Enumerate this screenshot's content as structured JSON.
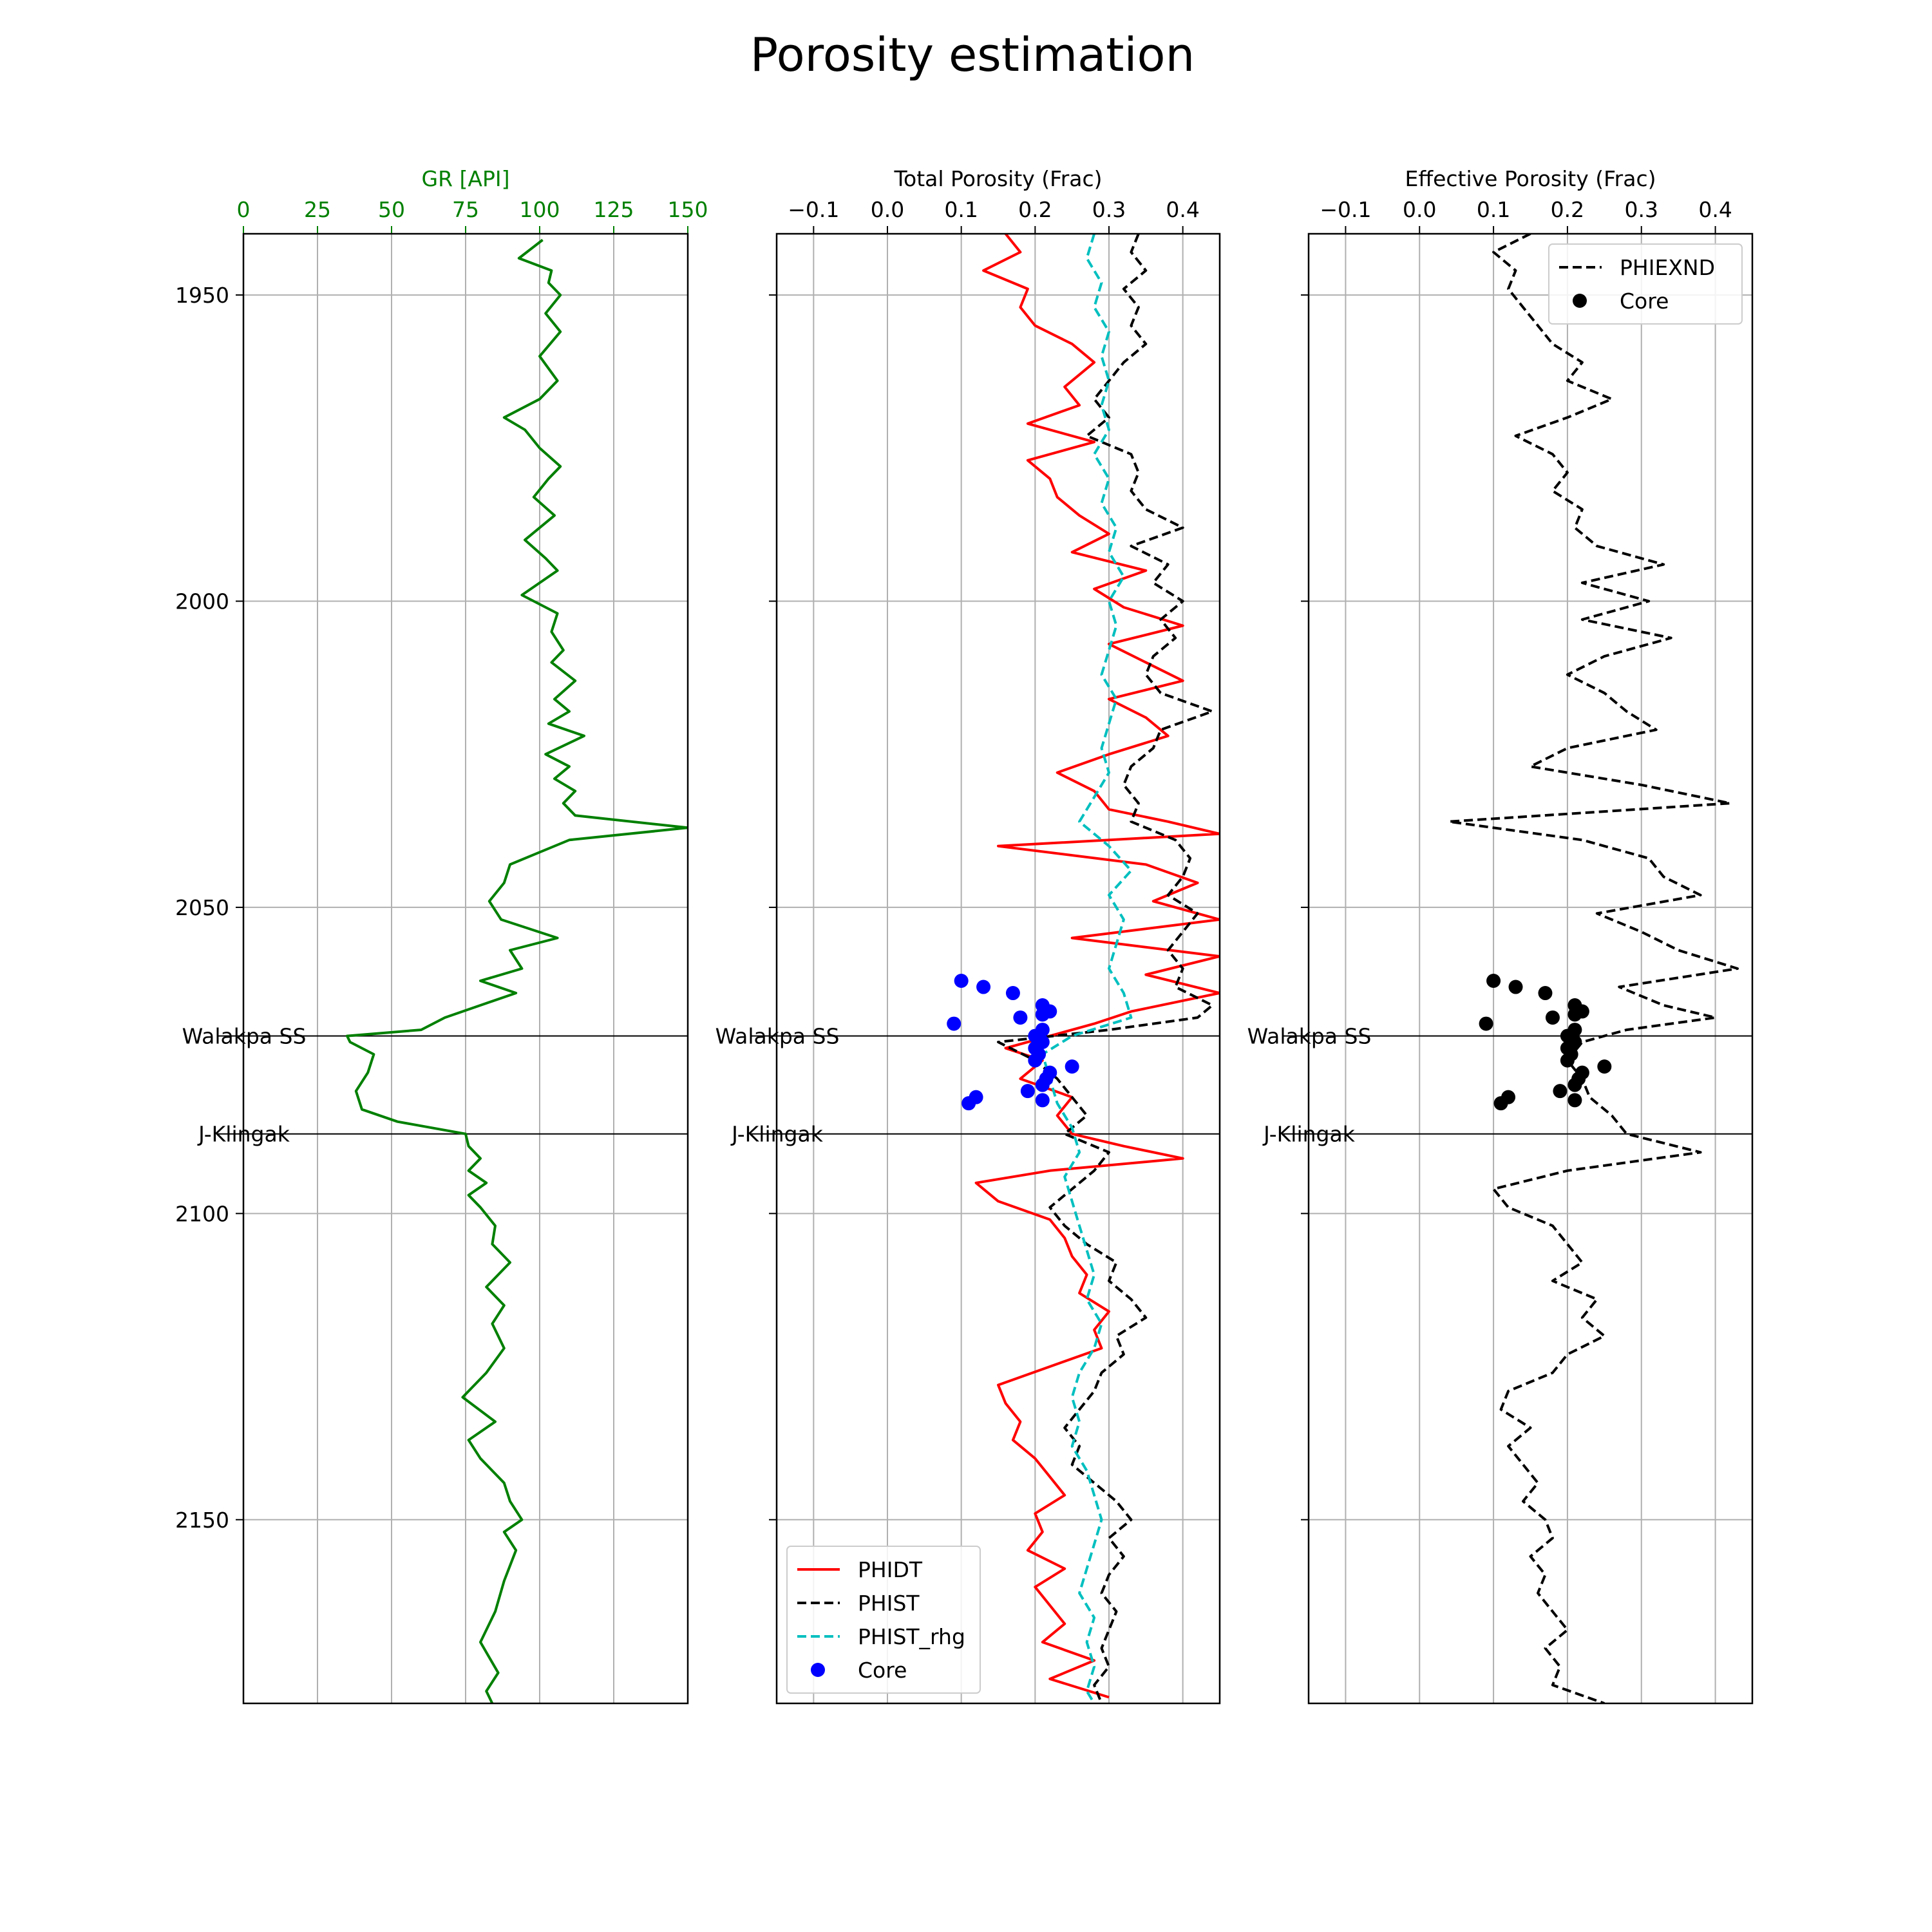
{
  "title": "Porosity estimation",
  "colors": {
    "gr": "#008000",
    "phidt": "#ff0000",
    "phist": "#000000",
    "phist_rhg": "#00bfbf",
    "core_total": "#0000ff",
    "core_effective": "#000000",
    "grid": "#b0b0b0",
    "axis": "#000000"
  },
  "chart_data": [
    {
      "type": "line",
      "xlabel": "GR [API]",
      "xlim": [
        0,
        150
      ],
      "xticks": [
        0,
        25,
        50,
        75,
        100,
        125,
        150
      ],
      "xtick_labels": [
        "0",
        "25",
        "50",
        "75",
        "100",
        "125",
        "150"
      ],
      "ylim": [
        2180,
        1940
      ],
      "yticks": [
        1950,
        2000,
        2050,
        2100,
        2150
      ],
      "ytick_labels": [
        "1950",
        "2000",
        "2050",
        "2100",
        "2150"
      ],
      "grid": true,
      "legend": null,
      "tops": [
        {
          "name": "Walakpa SS",
          "depth": 2071
        },
        {
          "name": "J-Klingak",
          "depth": 2087
        }
      ],
      "series": [
        {
          "key": "gr",
          "style": "solid",
          "depth": [
            1941,
            1944,
            1946,
            1948,
            1950,
            1953,
            1956,
            1960,
            1964,
            1967,
            1970,
            1972,
            1975,
            1978,
            1980,
            1983,
            1986,
            1990,
            1993,
            1995,
            1999,
            2002,
            2005,
            2008,
            2010,
            2013,
            2016,
            2018,
            2020,
            2022,
            2025,
            2027,
            2029,
            2031,
            2033,
            2035,
            2037,
            2039,
            2041,
            2043,
            2046,
            2049,
            2052,
            2055,
            2057,
            2060,
            2062,
            2064,
            2066,
            2068,
            2070,
            2071,
            2072,
            2074,
            2077,
            2080,
            2083,
            2085,
            2087,
            2089,
            2091,
            2093,
            2095,
            2097,
            2099,
            2102,
            2105,
            2108,
            2112,
            2115,
            2118,
            2122,
            2126,
            2130,
            2134,
            2137,
            2140,
            2144,
            2147,
            2150,
            2152,
            2155,
            2160,
            2165,
            2170,
            2175,
            2178,
            2180
          ],
          "value": [
            101,
            93,
            104,
            103,
            107,
            102,
            107,
            100,
            106,
            100,
            88,
            95,
            100,
            107,
            103,
            98,
            105,
            95,
            102,
            106,
            94,
            106,
            104,
            108,
            104,
            112,
            105,
            110,
            103,
            115,
            102,
            110,
            105,
            112,
            108,
            112,
            150,
            110,
            100,
            90,
            88,
            83,
            87,
            106,
            90,
            94,
            80,
            92,
            80,
            68,
            60,
            35,
            36,
            44,
            42,
            38,
            40,
            52,
            75,
            76,
            80,
            76,
            82,
            76,
            80,
            85,
            84,
            90,
            82,
            88,
            84,
            88,
            82,
            74,
            85,
            76,
            80,
            88,
            90,
            94,
            88,
            92,
            88,
            85,
            80,
            86,
            82,
            84
          ]
        }
      ]
    },
    {
      "type": "line",
      "xlabel": "Total Porosity (Frac)",
      "xlim": [
        -0.15,
        0.45
      ],
      "xticks": [
        -0.1,
        0.0,
        0.1,
        0.2,
        0.3,
        0.4
      ],
      "xtick_labels": [
        "−0.1",
        "0.0",
        "0.1",
        "0.2",
        "0.3",
        "0.4"
      ],
      "ylim": [
        2180,
        1940
      ],
      "yticks": [
        1950,
        2000,
        2050,
        2100,
        2150
      ],
      "grid": true,
      "legend": "lower-left",
      "tops": [
        {
          "name": "Walakpa SS",
          "depth": 2071
        },
        {
          "name": "J-Klingak",
          "depth": 2087
        }
      ],
      "series": [
        {
          "key": "phidt",
          "name": "PHIDT",
          "style": "solid",
          "depth": [
            1940,
            1943,
            1946,
            1949,
            1952,
            1955,
            1958,
            1961,
            1965,
            1968,
            1971,
            1974,
            1977,
            1980,
            1983,
            1986,
            1989,
            1992,
            1995,
            1998,
            2001,
            2004,
            2007,
            2010,
            2013,
            2016,
            2019,
            2022,
            2025,
            2028,
            2031,
            2034,
            2036,
            2038,
            2040,
            2043,
            2046,
            2049,
            2052,
            2055,
            2058,
            2061,
            2064,
            2067,
            2069,
            2071,
            2073,
            2075,
            2078,
            2081,
            2084,
            2087,
            2089,
            2091,
            2093,
            2095,
            2098,
            2101,
            2104,
            2107,
            2110,
            2113,
            2116,
            2119,
            2122,
            2125,
            2128,
            2131,
            2134,
            2137,
            2140,
            2143,
            2146,
            2149,
            2152,
            2155,
            2158,
            2161,
            2164,
            2167,
            2170,
            2173,
            2176,
            2179
          ],
          "value": [
            0.16,
            0.18,
            0.13,
            0.19,
            0.18,
            0.2,
            0.25,
            0.28,
            0.24,
            0.26,
            0.19,
            0.28,
            0.19,
            0.22,
            0.23,
            0.26,
            0.3,
            0.25,
            0.35,
            0.28,
            0.32,
            0.4,
            0.3,
            0.35,
            0.4,
            0.3,
            0.35,
            0.38,
            0.3,
            0.23,
            0.28,
            0.3,
            0.38,
            0.45,
            0.15,
            0.35,
            0.42,
            0.36,
            0.45,
            0.25,
            0.45,
            0.35,
            0.45,
            0.33,
            0.28,
            0.22,
            0.16,
            0.21,
            0.18,
            0.25,
            0.23,
            0.25,
            0.32,
            0.4,
            0.22,
            0.12,
            0.15,
            0.22,
            0.24,
            0.25,
            0.27,
            0.26,
            0.3,
            0.28,
            0.29,
            0.22,
            0.15,
            0.16,
            0.18,
            0.17,
            0.2,
            0.22,
            0.24,
            0.2,
            0.21,
            0.19,
            0.24,
            0.2,
            0.22,
            0.24,
            0.21,
            0.28,
            0.22,
            0.3
          ]
        },
        {
          "key": "phist",
          "name": "PHIST",
          "style": "dashed",
          "depth": [
            1940,
            1943,
            1946,
            1949,
            1952,
            1955,
            1958,
            1961,
            1964,
            1967,
            1970,
            1973,
            1976,
            1979,
            1982,
            1985,
            1988,
            1991,
            1994,
            1997,
            2000,
            2003,
            2006,
            2009,
            2012,
            2015,
            2018,
            2021,
            2024,
            2027,
            2030,
            2033,
            2036,
            2039,
            2042,
            2045,
            2048,
            2051,
            2054,
            2057,
            2060,
            2063,
            2066,
            2068,
            2070,
            2072,
            2075,
            2078,
            2081,
            2084,
            2087,
            2090,
            2093,
            2096,
            2099,
            2102,
            2105,
            2108,
            2111,
            2114,
            2117,
            2120,
            2123,
            2126,
            2129,
            2132,
            2135,
            2138,
            2141,
            2144,
            2147,
            2150,
            2153,
            2156,
            2159,
            2162,
            2165,
            2168,
            2171,
            2174,
            2177,
            2180
          ],
          "value": [
            0.34,
            0.33,
            0.35,
            0.32,
            0.34,
            0.33,
            0.35,
            0.32,
            0.3,
            0.28,
            0.3,
            0.27,
            0.33,
            0.34,
            0.33,
            0.35,
            0.4,
            0.33,
            0.38,
            0.36,
            0.4,
            0.37,
            0.39,
            0.36,
            0.35,
            0.37,
            0.44,
            0.37,
            0.36,
            0.33,
            0.32,
            0.34,
            0.33,
            0.39,
            0.41,
            0.4,
            0.38,
            0.42,
            0.4,
            0.38,
            0.4,
            0.39,
            0.44,
            0.42,
            0.3,
            0.15,
            0.2,
            0.23,
            0.25,
            0.27,
            0.24,
            0.3,
            0.28,
            0.25,
            0.22,
            0.24,
            0.27,
            0.31,
            0.3,
            0.33,
            0.35,
            0.31,
            0.32,
            0.29,
            0.28,
            0.26,
            0.24,
            0.26,
            0.25,
            0.28,
            0.31,
            0.33,
            0.3,
            0.32,
            0.3,
            0.29,
            0.31,
            0.3,
            0.29,
            0.3,
            0.28,
            0.29
          ]
        },
        {
          "key": "phist_rhg",
          "name": "PHIST_rhg",
          "style": "dashed",
          "depth": [
            1940,
            1944,
            1948,
            1952,
            1956,
            1960,
            1964,
            1968,
            1972,
            1976,
            1980,
            1984,
            1988,
            1992,
            1996,
            2000,
            2004,
            2008,
            2012,
            2016,
            2020,
            2024,
            2028,
            2032,
            2036,
            2040,
            2044,
            2048,
            2052,
            2056,
            2060,
            2064,
            2068,
            2071,
            2074,
            2078,
            2082,
            2086,
            2090,
            2094,
            2098,
            2102,
            2106,
            2110,
            2114,
            2118,
            2122,
            2126,
            2130,
            2134,
            2138,
            2142,
            2146,
            2150,
            2154,
            2158,
            2162,
            2166,
            2170,
            2174,
            2178,
            2180
          ],
          "value": [
            0.28,
            0.27,
            0.29,
            0.28,
            0.3,
            0.29,
            0.3,
            0.29,
            0.3,
            0.28,
            0.3,
            0.29,
            0.31,
            0.3,
            0.32,
            0.3,
            0.31,
            0.3,
            0.29,
            0.31,
            0.3,
            0.29,
            0.3,
            0.28,
            0.26,
            0.3,
            0.33,
            0.3,
            0.32,
            0.31,
            0.3,
            0.32,
            0.33,
            0.25,
            0.21,
            0.22,
            0.23,
            0.25,
            0.26,
            0.24,
            0.25,
            0.26,
            0.27,
            0.28,
            0.27,
            0.29,
            0.28,
            0.26,
            0.25,
            0.26,
            0.25,
            0.27,
            0.28,
            0.29,
            0.28,
            0.27,
            0.26,
            0.28,
            0.27,
            0.28,
            0.27,
            0.28
          ]
        },
        {
          "key": "core_total",
          "name": "Core",
          "style": "markers",
          "depth": [
            2062,
            2063,
            2064,
            2066,
            2067,
            2067.5,
            2068,
            2069,
            2070,
            2071,
            2072,
            2073,
            2074,
            2075,
            2076,
            2077,
            2078,
            2079,
            2080,
            2081,
            2081.5,
            2082
          ],
          "value": [
            0.1,
            0.13,
            0.17,
            0.21,
            0.22,
            0.21,
            0.18,
            0.09,
            0.21,
            0.2,
            0.21,
            0.2,
            0.205,
            0.2,
            0.25,
            0.22,
            0.215,
            0.21,
            0.19,
            0.12,
            0.21,
            0.11
          ]
        }
      ]
    },
    {
      "type": "line",
      "xlabel": "Effective Porosity (Frac)",
      "xlim": [
        -0.15,
        0.45
      ],
      "xticks": [
        -0.1,
        0.0,
        0.1,
        0.2,
        0.3,
        0.4
      ],
      "xtick_labels": [
        "−0.1",
        "0.0",
        "0.1",
        "0.2",
        "0.3",
        "0.4"
      ],
      "ylim": [
        2180,
        1940
      ],
      "yticks": [
        1950,
        2000,
        2050,
        2100,
        2150
      ],
      "grid": true,
      "legend": "upper-right",
      "tops": [
        {
          "name": "Walakpa SS",
          "depth": 2071
        },
        {
          "name": "J-Klingak",
          "depth": 2087
        }
      ],
      "series": [
        {
          "key": "phist",
          "name": "PHIEXND",
          "style": "dashed",
          "depth": [
            1940,
            1943,
            1946,
            1949,
            1952,
            1955,
            1958,
            1961,
            1964,
            1967,
            1970,
            1973,
            1976,
            1979,
            1982,
            1985,
            1988,
            1991,
            1994,
            1997,
            2000,
            2003,
            2006,
            2009,
            2012,
            2015,
            2018,
            2021,
            2024,
            2027,
            2030,
            2033,
            2036,
            2039,
            2042,
            2045,
            2048,
            2051,
            2054,
            2057,
            2060,
            2063,
            2066,
            2068,
            2070,
            2072,
            2075,
            2078,
            2081,
            2084,
            2087,
            2090,
            2093,
            2096,
            2099,
            2102,
            2105,
            2108,
            2111,
            2114,
            2117,
            2120,
            2123,
            2126,
            2129,
            2132,
            2135,
            2138,
            2141,
            2144,
            2147,
            2150,
            2153,
            2156,
            2159,
            2162,
            2165,
            2168,
            2171,
            2174,
            2177,
            2180
          ],
          "value": [
            0.15,
            0.1,
            0.13,
            0.12,
            0.14,
            0.16,
            0.18,
            0.22,
            0.2,
            0.26,
            0.2,
            0.13,
            0.18,
            0.2,
            0.18,
            0.22,
            0.21,
            0.24,
            0.33,
            0.22,
            0.31,
            0.22,
            0.34,
            0.25,
            0.2,
            0.25,
            0.28,
            0.32,
            0.2,
            0.15,
            0.3,
            0.42,
            0.04,
            0.22,
            0.31,
            0.33,
            0.38,
            0.24,
            0.3,
            0.35,
            0.43,
            0.27,
            0.33,
            0.4,
            0.28,
            0.22,
            0.2,
            0.22,
            0.23,
            0.26,
            0.28,
            0.38,
            0.2,
            0.1,
            0.12,
            0.18,
            0.2,
            0.22,
            0.18,
            0.24,
            0.22,
            0.25,
            0.2,
            0.18,
            0.12,
            0.11,
            0.15,
            0.12,
            0.14,
            0.16,
            0.14,
            0.17,
            0.18,
            0.15,
            0.17,
            0.16,
            0.18,
            0.2,
            0.17,
            0.19,
            0.18,
            0.25
          ]
        },
        {
          "key": "core_effective",
          "name": "Core",
          "style": "markers",
          "depth": [
            2062,
            2063,
            2064,
            2066,
            2067,
            2067.5,
            2068,
            2069,
            2070,
            2071,
            2072,
            2073,
            2074,
            2075,
            2076,
            2077,
            2078,
            2079,
            2080,
            2081,
            2081.5,
            2082
          ],
          "value": [
            0.1,
            0.13,
            0.17,
            0.21,
            0.22,
            0.21,
            0.18,
            0.09,
            0.21,
            0.2,
            0.21,
            0.2,
            0.205,
            0.2,
            0.25,
            0.22,
            0.215,
            0.21,
            0.19,
            0.12,
            0.21,
            0.11
          ]
        }
      ]
    }
  ]
}
